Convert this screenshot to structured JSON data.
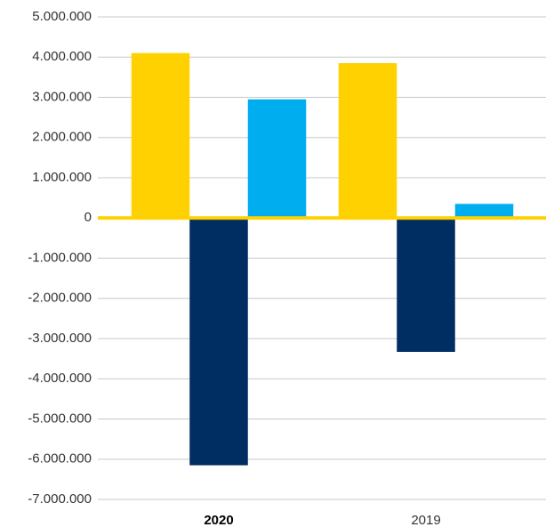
{
  "chart_data": {
    "type": "bar",
    "categories": [
      "2020",
      "2019"
    ],
    "series": [
      {
        "color": "#ffd100",
        "values": [
          4100000,
          3850000
        ]
      },
      {
        "color": "#002d62",
        "values": [
          -6150000,
          -3330000
        ]
      },
      {
        "color": "#00aeef",
        "values": [
          2950000,
          350000
        ]
      }
    ],
    "ylim": [
      -7000000,
      5000000
    ],
    "yticks": [
      {
        "value": 5000000,
        "label": "5.000.000"
      },
      {
        "value": 4000000,
        "label": "4.000.000"
      },
      {
        "value": 3000000,
        "label": "3.000.000"
      },
      {
        "value": 2000000,
        "label": "2.000.000"
      },
      {
        "value": 1000000,
        "label": "1.000.000"
      },
      0,
      {
        "value": -1000000,
        "label": "-1.000.000"
      },
      {
        "value": -2000000,
        "label": "-2.000.000"
      },
      {
        "value": -3000000,
        "label": "-3.000.000"
      },
      {
        "value": -4000000,
        "label": "-4.000.000"
      },
      {
        "value": -5000000,
        "label": "-5.000.000"
      },
      {
        "value": -6000000,
        "label": "-6.000.000"
      },
      {
        "value": -7000000,
        "label": "-7.000.000"
      }
    ],
    "grid": true
  }
}
